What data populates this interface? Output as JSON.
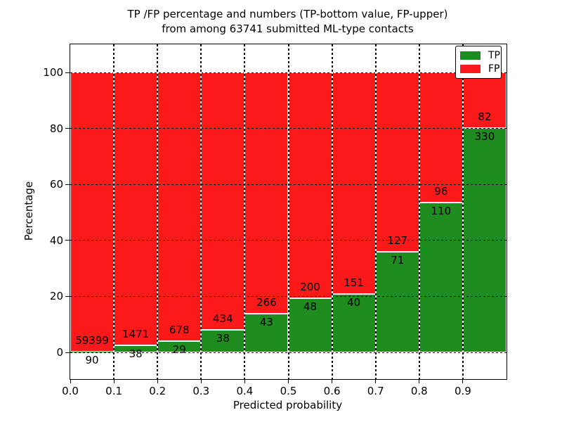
{
  "figure": {
    "title_line1": "TP /FP percentage and numbers (TP-bottom value, FP-upper)",
    "title_line2": "from among 63741 submitted ML-type contacts",
    "xlabel": "Predicted probability",
    "ylabel": "Percentage"
  },
  "legend": {
    "position": "upper right",
    "items": [
      {
        "label": "TP",
        "color": "#1e8c1e"
      },
      {
        "label": "FP",
        "color": "#fb1919"
      }
    ]
  },
  "chart_data": {
    "type": "bar",
    "stacked": true,
    "normalized": "percent",
    "title": "TP /FP percentage and numbers (TP-bottom value, FP-upper) from among 63741 submitted ML-type contacts",
    "xlabel": "Predicted probability",
    "ylabel": "Percentage",
    "total_contacts": 63741,
    "x_bin_start": [
      0.0,
      0.1,
      0.2,
      0.3,
      0.4,
      0.5,
      0.6,
      0.7,
      0.8,
      0.9
    ],
    "x_bin_width": 0.1,
    "x_tick_labels": [
      "0.0",
      "0.1",
      "0.2",
      "0.3",
      "0.4",
      "0.5",
      "0.6",
      "0.7",
      "0.8",
      "0.9"
    ],
    "y_ticks": [
      0,
      20,
      40,
      60,
      80,
      100
    ],
    "ylim_percent": [
      0,
      100
    ],
    "grid": true,
    "legend_position": "upper right",
    "series": [
      {
        "name": "TP",
        "color": "#1e8c1e",
        "counts": [
          90,
          38,
          29,
          38,
          43,
          48,
          40,
          71,
          110,
          330
        ]
      },
      {
        "name": "FP",
        "color": "#fb1919",
        "counts": [
          59399,
          1471,
          678,
          434,
          266,
          200,
          151,
          127,
          96,
          82
        ]
      }
    ],
    "tp_percent_of_bin": [
      0.15,
      2.52,
      4.1,
      8.05,
      13.92,
      19.35,
      20.94,
      35.86,
      53.4,
      80.1
    ]
  }
}
